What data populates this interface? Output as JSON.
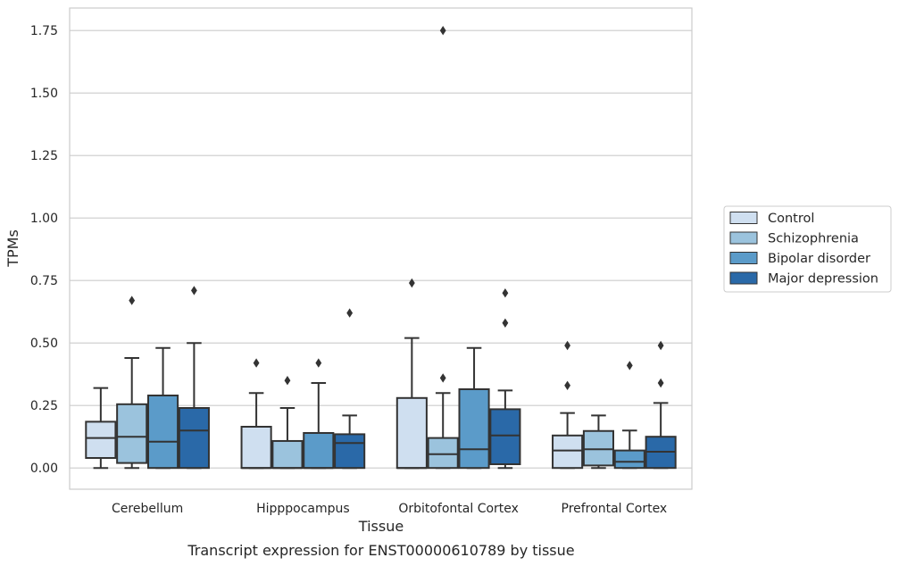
{
  "caption": "Transcript expression for ENST00000610789 by tissue",
  "chart_data": {
    "type": "box",
    "title": "",
    "xlabel": "Tissue",
    "ylabel": "TPMs",
    "ylim": [
      -0.085,
      1.84
    ],
    "yticks": [
      0.0,
      0.25,
      0.5,
      0.75,
      1.0,
      1.25,
      1.5,
      1.75
    ],
    "ytick_labels": [
      "0.00",
      "0.25",
      "0.50",
      "0.75",
      "1.00",
      "1.25",
      "1.50",
      "1.75"
    ],
    "grid": "horizontal",
    "legend_position": "right",
    "categories": [
      "Cerebellum",
      "Hipppocampus",
      "Orbitofontal Cortex",
      "Prefrontal Cortex"
    ],
    "colors": {
      "Control": "#cfdff0",
      "Schizophrenia": "#9bc3dd",
      "Bipolar disorder": "#5b9bc9",
      "Major depression": "#2a69a8",
      "edge": "#333333",
      "grid": "#cccccc"
    },
    "series": [
      {
        "name": "Control",
        "boxes": [
          {
            "whislo": 0.0,
            "q1": 0.04,
            "med": 0.12,
            "q3": 0.185,
            "whishi": 0.32,
            "fliers": []
          },
          {
            "whislo": 0.0,
            "q1": 0.0,
            "med": 0.0,
            "q3": 0.165,
            "whishi": 0.3,
            "fliers": [
              0.42
            ]
          },
          {
            "whislo": 0.0,
            "q1": 0.0,
            "med": 0.0,
            "q3": 0.28,
            "whishi": 0.52,
            "fliers": [
              0.74
            ]
          },
          {
            "whislo": 0.0,
            "q1": 0.0,
            "med": 0.07,
            "q3": 0.13,
            "whishi": 0.22,
            "fliers": [
              0.33,
              0.49
            ]
          }
        ]
      },
      {
        "name": "Schizophrenia",
        "boxes": [
          {
            "whislo": 0.0,
            "q1": 0.02,
            "med": 0.125,
            "q3": 0.255,
            "whishi": 0.44,
            "fliers": [
              0.67
            ]
          },
          {
            "whislo": 0.0,
            "q1": 0.0,
            "med": 0.0,
            "q3": 0.108,
            "whishi": 0.24,
            "fliers": [
              0.35
            ]
          },
          {
            "whislo": 0.0,
            "q1": 0.0,
            "med": 0.055,
            "q3": 0.12,
            "whishi": 0.3,
            "fliers": [
              0.36,
              1.75
            ]
          },
          {
            "whislo": 0.0,
            "q1": 0.01,
            "med": 0.075,
            "q3": 0.148,
            "whishi": 0.21,
            "fliers": []
          }
        ]
      },
      {
        "name": "Bipolar disorder",
        "boxes": [
          {
            "whislo": 0.0,
            "q1": 0.0,
            "med": 0.105,
            "q3": 0.29,
            "whishi": 0.48,
            "fliers": []
          },
          {
            "whislo": 0.0,
            "q1": 0.0,
            "med": 0.0,
            "q3": 0.14,
            "whishi": 0.34,
            "fliers": [
              0.42
            ]
          },
          {
            "whislo": 0.0,
            "q1": 0.0,
            "med": 0.075,
            "q3": 0.315,
            "whishi": 0.48,
            "fliers": []
          },
          {
            "whislo": 0.0,
            "q1": 0.0,
            "med": 0.025,
            "q3": 0.07,
            "whishi": 0.15,
            "fliers": [
              0.41
            ]
          }
        ]
      },
      {
        "name": "Major depression",
        "boxes": [
          {
            "whislo": 0.0,
            "q1": 0.0,
            "med": 0.15,
            "q3": 0.24,
            "whishi": 0.5,
            "fliers": [
              0.71
            ]
          },
          {
            "whislo": 0.0,
            "q1": 0.0,
            "med": 0.1,
            "q3": 0.135,
            "whishi": 0.21,
            "fliers": [
              0.62
            ]
          },
          {
            "whislo": 0.0,
            "q1": 0.015,
            "med": 0.13,
            "q3": 0.235,
            "whishi": 0.31,
            "fliers": [
              0.58,
              0.7
            ]
          },
          {
            "whislo": 0.0,
            "q1": 0.0,
            "med": 0.065,
            "q3": 0.125,
            "whishi": 0.26,
            "fliers": [
              0.34,
              0.49
            ]
          }
        ]
      }
    ]
  }
}
